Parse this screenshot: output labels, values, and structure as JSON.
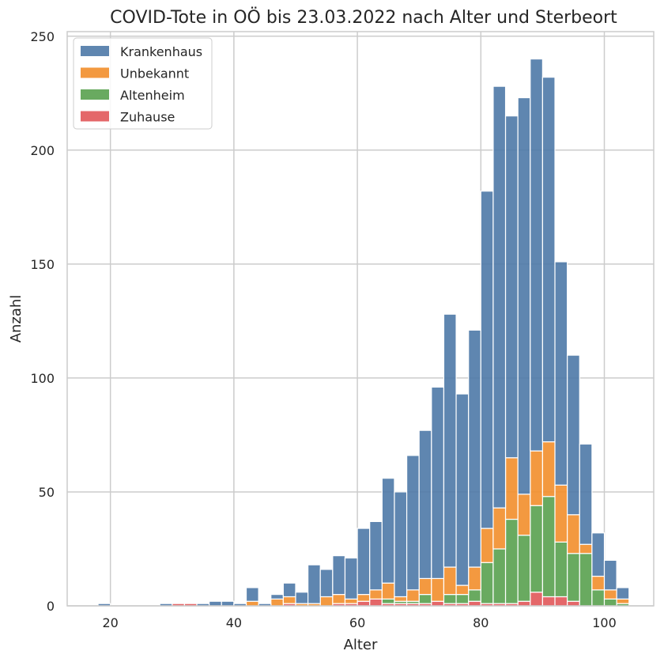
{
  "chart_data": {
    "type": "bar",
    "stacked": true,
    "title": "COVID-Tote in OÖ bis 23.03.2022 nach Alter und Sterbeort",
    "xlabel": "Alter",
    "ylabel": "Anzahl",
    "xlim": [
      13,
      108
    ],
    "ylim": [
      0,
      252
    ],
    "xticks": [
      20,
      40,
      60,
      80,
      100
    ],
    "yticks": [
      0,
      50,
      100,
      150,
      200,
      250
    ],
    "grid": true,
    "legend_position": "top-left",
    "bin_width": 2,
    "bins_start": [
      18,
      20,
      22,
      24,
      26,
      28,
      30,
      32,
      34,
      36,
      38,
      40,
      42,
      44,
      46,
      48,
      50,
      52,
      54,
      56,
      58,
      60,
      62,
      64,
      66,
      68,
      70,
      72,
      74,
      76,
      78,
      80,
      82,
      84,
      86,
      88,
      90,
      92,
      94,
      96,
      98,
      100,
      102
    ],
    "series": [
      {
        "name": "Zuhause",
        "color": "#e15759",
        "values": [
          0,
          0,
          0,
          0,
          0,
          0,
          1,
          1,
          0,
          0,
          0,
          0,
          0,
          0,
          0,
          1,
          0,
          0,
          0,
          1,
          1,
          2,
          3,
          1,
          1,
          1,
          1,
          2,
          1,
          1,
          2,
          1,
          1,
          1,
          2,
          6,
          4,
          4,
          2,
          0,
          0,
          0,
          0
        ]
      },
      {
        "name": "Altenheim",
        "color": "#59a14f",
        "values": [
          0,
          0,
          0,
          0,
          0,
          0,
          0,
          0,
          0,
          0,
          0,
          0,
          0,
          0,
          0,
          0,
          0,
          0,
          0,
          0,
          0,
          0,
          0,
          2,
          1,
          1,
          4,
          0,
          4,
          4,
          5,
          18,
          24,
          37,
          29,
          38,
          44,
          24,
          21,
          23,
          7,
          3,
          1
        ]
      },
      {
        "name": "Unbekannt",
        "color": "#f28e2b",
        "values": [
          0,
          0,
          0,
          0,
          0,
          0,
          0,
          0,
          0,
          0,
          0,
          0,
          2,
          0,
          3,
          3,
          1,
          1,
          4,
          4,
          2,
          3,
          4,
          7,
          2,
          5,
          7,
          10,
          12,
          4,
          10,
          15,
          18,
          27,
          18,
          24,
          24,
          25,
          17,
          4,
          6,
          4,
          2
        ]
      },
      {
        "name": "Krankenhaus",
        "color": "#4e79a7",
        "values": [
          1,
          0,
          0,
          0,
          0,
          1,
          0,
          0,
          1,
          2,
          2,
          1,
          6,
          1,
          2,
          6,
          5,
          17,
          12,
          17,
          18,
          29,
          30,
          46,
          46,
          59,
          65,
          84,
          111,
          84,
          104,
          148,
          185,
          150,
          174,
          172,
          160,
          98,
          70,
          44,
          19,
          13,
          5
        ]
      }
    ],
    "legend_order": [
      "Krankenhaus",
      "Unbekannt",
      "Altenheim",
      "Zuhause"
    ]
  }
}
